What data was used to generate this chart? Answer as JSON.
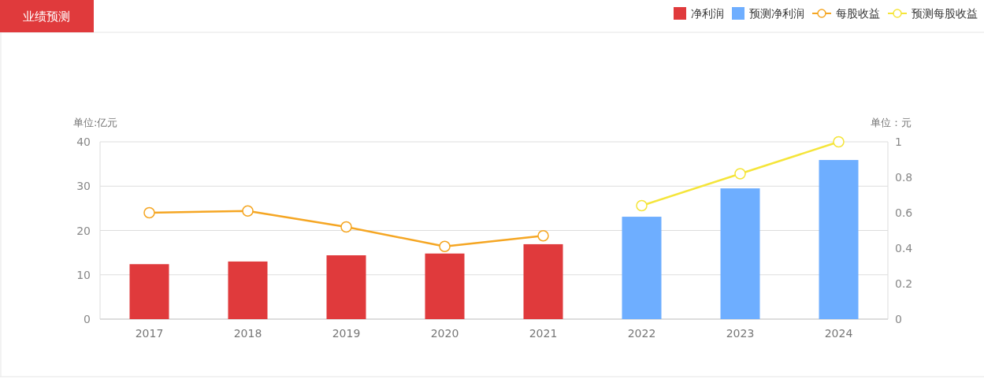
{
  "chart_data": {
    "type": "bar",
    "title": "业绩预测",
    "ylabel": "单位:亿元",
    "y2label": "单位：元",
    "categories": [
      "2017",
      "2018",
      "2019",
      "2020",
      "2021",
      "2022",
      "2023",
      "2024"
    ],
    "series": [
      {
        "name": "净利润",
        "color": "#e03a3c",
        "values": [
          12.4,
          13.0,
          14.4,
          14.8,
          16.9,
          null,
          null,
          null
        ]
      },
      {
        "name": "预测净利润",
        "color": "#6eaeff",
        "values": [
          null,
          null,
          null,
          null,
          null,
          23.1,
          29.5,
          35.9
        ]
      },
      {
        "name": "每股收益",
        "type": "line",
        "axis": "y2",
        "color": "#f5a623",
        "values": [
          0.6,
          0.61,
          0.52,
          0.41,
          0.47,
          null,
          null,
          null
        ]
      },
      {
        "name": "预测每股收益",
        "type": "line",
        "axis": "y2",
        "color": "#f5e53a",
        "values": [
          null,
          null,
          null,
          null,
          null,
          0.64,
          0.82,
          1.0
        ]
      }
    ],
    "ylim": [
      0,
      40
    ],
    "yticks": [
      0,
      10,
      20,
      30,
      40
    ],
    "y2lim": [
      0,
      1
    ],
    "y2ticks": [
      0,
      0.2,
      0.4,
      0.6,
      0.8,
      1
    ],
    "grid": "y",
    "legend": "top right",
    "marker": "circle"
  }
}
